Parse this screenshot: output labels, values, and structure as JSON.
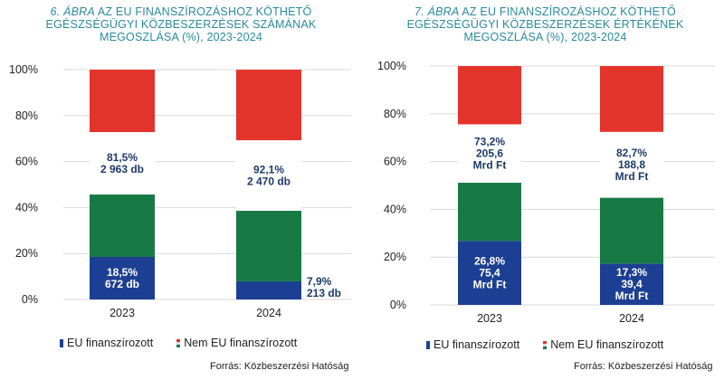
{
  "charts": [
    {
      "title_num": "6. ÁBRA",
      "title_line1_rest": "AZ EU FINANSZÍROZÁSHOZ KÖTHETŐ",
      "title_line2": "EGÉSZSÉGÜGYI KÖZBESZERZÉSEK SZÁMÁNAK",
      "title_line3": "MEGOSZLÁSA (%), 2023-2024",
      "legend": [
        "EU finanszírozott",
        "Nem EU finanszírozott"
      ],
      "source": "Forrás: Közbeszerzési Hatóság"
    },
    {
      "title_num": "7. ÁBRA",
      "title_line1_rest": "AZ EU FINANSZÍROZÁSHOZ KÖTHETŐ",
      "title_line2": "EGÉSZSÉGÜGYI KÖZBESZERZÉSEK ÉRTÉKÉNEK",
      "title_line3": "MEGOSZLÁSA (%), 2023-2024",
      "legend": [
        "EU finanszírozott",
        "Nem EU finanszírozott"
      ],
      "source": "Forrás: Közbeszerzési Hatóság"
    }
  ],
  "chart_data": [
    {
      "type": "bar",
      "stacked": true,
      "categories": [
        "2023",
        "2024"
      ],
      "series": [
        {
          "name": "EU finanszírozott",
          "values": [
            18.5,
            7.9
          ],
          "color": "#1d3f93",
          "labels": [
            [
              "18,5%",
              "672 db"
            ],
            [
              "7,9%",
              "213 db"
            ]
          ]
        },
        {
          "name": "Nem EU finanszírozott",
          "values": [
            81.5,
            92.1
          ],
          "labels": [
            [
              "81,5%",
              "2 963 db"
            ],
            [
              "92,1%",
              "2 470 db"
            ]
          ]
        }
      ],
      "flag_colors": {
        "red": "#e3342c",
        "white": "#ffffff",
        "green": "#177a45"
      },
      "yticks": [
        "0%",
        "20%",
        "40%",
        "60%",
        "80%",
        "100%"
      ],
      "ylim": [
        0,
        100
      ],
      "legend_position": "bottom",
      "grid": true
    },
    {
      "type": "bar",
      "stacked": true,
      "categories": [
        "2023",
        "2024"
      ],
      "series": [
        {
          "name": "EU finanszírozott",
          "values": [
            26.8,
            17.3
          ],
          "color": "#1d3f93",
          "labels": [
            [
              "26,8%",
              "75,4",
              "Mrd Ft"
            ],
            [
              "17,3%",
              "39,4",
              "Mrd Ft"
            ]
          ]
        },
        {
          "name": "Nem EU finanszírozott",
          "values": [
            73.2,
            82.7
          ],
          "labels": [
            [
              "73,2%",
              "205,6",
              "Mrd Ft"
            ],
            [
              "82,7%",
              "188,8",
              "Mrd Ft"
            ]
          ]
        }
      ],
      "flag_colors": {
        "red": "#e3342c",
        "white": "#ffffff",
        "green": "#177a45"
      },
      "yticks": [
        "0%",
        "20%",
        "40%",
        "60%",
        "80%",
        "100%"
      ],
      "ylim": [
        0,
        100
      ],
      "legend_position": "bottom",
      "grid": true
    }
  ]
}
